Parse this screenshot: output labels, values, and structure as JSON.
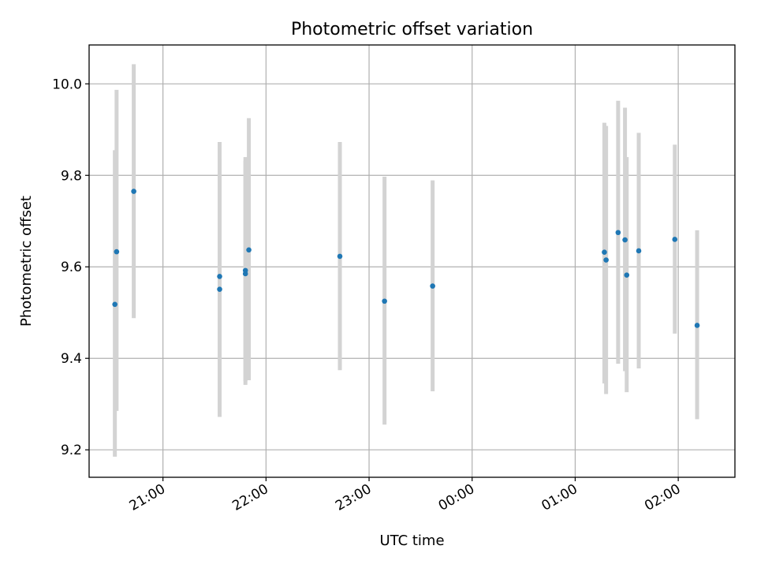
{
  "chart_data": {
    "type": "scatter",
    "title": "Photometric offset variation",
    "xlabel": "UTC time",
    "ylabel": "Photometric offset",
    "xlim": [
      "20:17",
      "02:33"
    ],
    "ylim": [
      9.14,
      10.085
    ],
    "x_ticks": [
      "21:00",
      "22:00",
      "23:00",
      "00:00",
      "01:00",
      "02:00"
    ],
    "y_ticks": [
      9.2,
      9.4,
      9.6,
      9.8,
      10.0
    ],
    "y_tick_labels": [
      "9.2",
      "9.4",
      "9.6",
      "9.8",
      "10.0"
    ],
    "grid": true,
    "x_date_span": {
      "start": "20:00",
      "end": "03:00"
    },
    "series": [
      {
        "color": "#1f77b4",
        "error_color": "#d3d3d3",
        "points": [
          {
            "x": "20:32",
            "y": 9.518,
            "yerr_low": 9.185,
            "yerr_high": 9.855
          },
          {
            "x": "20:33",
            "y": 9.633,
            "yerr_low": 9.285,
            "yerr_high": 9.987
          },
          {
            "x": "20:43",
            "y": 9.765,
            "yerr_low": 9.488,
            "yerr_high": 10.043
          },
          {
            "x": "21:33",
            "y": 9.551,
            "yerr_low": 9.272,
            "yerr_high": 9.835
          },
          {
            "x": "21:33",
            "y": 9.579,
            "yerr_low": 9.29,
            "yerr_high": 9.873
          },
          {
            "x": "21:48",
            "y": 9.585,
            "yerr_low": 9.342,
            "yerr_high": 9.84
          },
          {
            "x": "21:48",
            "y": 9.592,
            "yerr_low": 9.35,
            "yerr_high": 9.832
          },
          {
            "x": "21:50",
            "y": 9.637,
            "yerr_low": 9.352,
            "yerr_high": 9.925
          },
          {
            "x": "22:43",
            "y": 9.623,
            "yerr_low": 9.374,
            "yerr_high": 9.873
          },
          {
            "x": "23:09",
            "y": 9.525,
            "yerr_low": 9.255,
            "yerr_high": 9.797
          },
          {
            "x": "23:37",
            "y": 9.558,
            "yerr_low": 9.328,
            "yerr_high": 9.789
          },
          {
            "x": "01:17",
            "y": 9.632,
            "yerr_low": 9.345,
            "yerr_high": 9.915
          },
          {
            "x": "01:18",
            "y": 9.615,
            "yerr_low": 9.322,
            "yerr_high": 9.908
          },
          {
            "x": "01:25",
            "y": 9.675,
            "yerr_low": 9.388,
            "yerr_high": 9.963
          },
          {
            "x": "01:29",
            "y": 9.659,
            "yerr_low": 9.372,
            "yerr_high": 9.948
          },
          {
            "x": "01:30",
            "y": 9.582,
            "yerr_low": 9.326,
            "yerr_high": 9.84
          },
          {
            "x": "01:37",
            "y": 9.635,
            "yerr_low": 9.378,
            "yerr_high": 9.893
          },
          {
            "x": "01:58",
            "y": 9.66,
            "yerr_low": 9.454,
            "yerr_high": 9.867
          },
          {
            "x": "02:11",
            "y": 9.472,
            "yerr_low": 9.267,
            "yerr_high": 9.68
          }
        ]
      }
    ]
  }
}
